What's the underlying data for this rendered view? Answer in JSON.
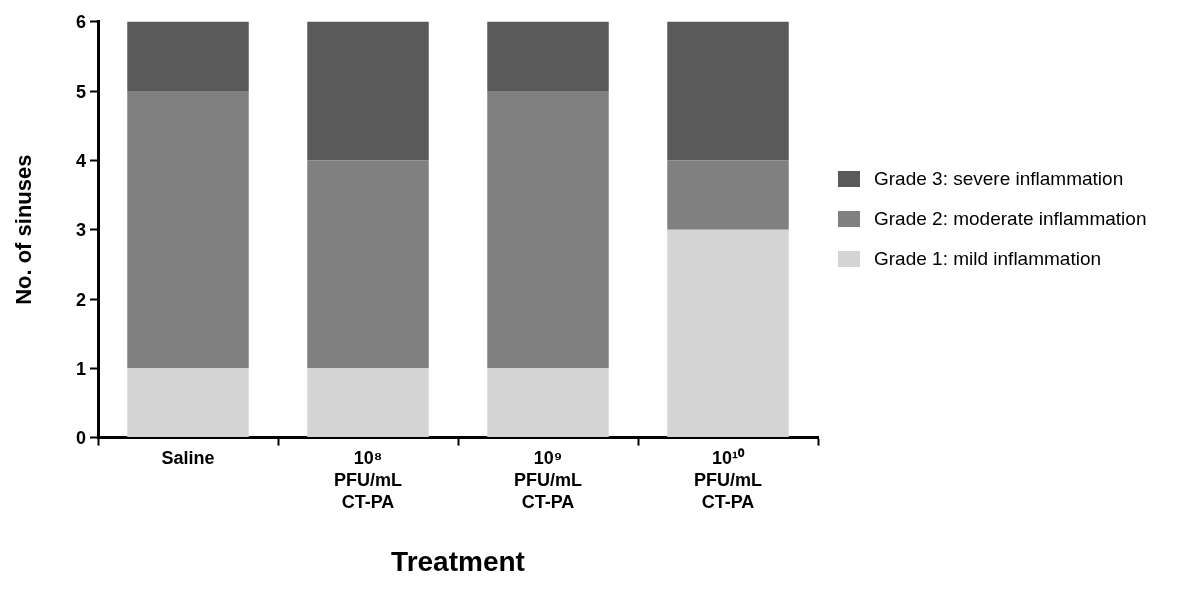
{
  "chart_data": {
    "type": "bar",
    "stacked": true,
    "xlabel": "Treatment",
    "ylabel": "No. of sinuses",
    "categories": [
      "Saline",
      "10⁸ PFU/mL CT-PA",
      "10⁹ PFU/mL CT-PA",
      "10¹⁰ PFU/mL CT-PA"
    ],
    "series": [
      {
        "name": "Grade 1: mild inflammation",
        "color": "#d4d4d4",
        "values": [
          1,
          1,
          1,
          3
        ]
      },
      {
        "name": "Grade 2: moderate inflammation",
        "color": "#808080",
        "values": [
          4,
          3,
          4,
          1
        ]
      },
      {
        "name": "Grade 3: severe inflammation",
        "color": "#5a5a5a",
        "values": [
          1,
          2,
          1,
          2
        ]
      }
    ],
    "ylim": [
      0,
      6
    ],
    "yticks": [
      0,
      1,
      2,
      3,
      4,
      5,
      6
    ],
    "grid": false,
    "legend": "right"
  }
}
